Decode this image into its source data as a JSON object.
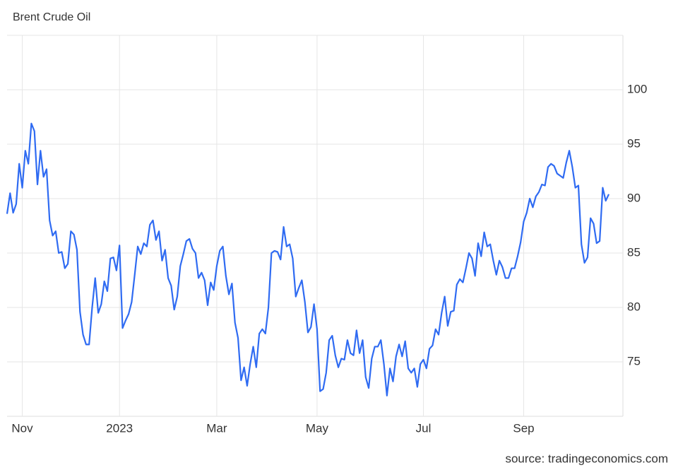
{
  "chart_data": {
    "type": "line",
    "title": "Brent Crude Oil",
    "source": "source: tradingeconomics.com",
    "color": "#2f6bf2",
    "grid": true,
    "ylim": [
      70,
      105
    ],
    "yticks": [
      75,
      80,
      85,
      90,
      95,
      100
    ],
    "categories": [
      null,
      null,
      null,
      null,
      null,
      "Nov",
      null,
      null,
      null,
      null,
      null,
      null,
      null,
      null,
      null,
      null,
      null,
      null,
      null,
      null,
      null,
      null,
      null,
      null,
      null,
      null,
      null,
      null,
      null,
      null,
      null,
      null,
      null,
      null,
      null,
      null,
      null,
      "2023",
      null,
      null,
      null,
      null,
      null,
      null,
      null,
      null,
      null,
      null,
      null,
      null,
      null,
      null,
      null,
      null,
      null,
      null,
      null,
      null,
      null,
      null,
      null,
      null,
      null,
      null,
      null,
      null,
      null,
      null,
      null,
      "Mar",
      null,
      null,
      null,
      null,
      null,
      null,
      null,
      null,
      null,
      null,
      null,
      null,
      null,
      null,
      null,
      null,
      null,
      null,
      null,
      null,
      null,
      null,
      null,
      null,
      null,
      null,
      null,
      null,
      null,
      null,
      null,
      null,
      "May",
      null,
      null,
      null,
      null,
      null,
      null,
      null,
      null,
      null,
      null,
      null,
      null,
      null,
      null,
      null,
      null,
      null,
      null,
      null,
      null,
      null,
      null,
      null,
      null,
      null,
      null,
      null,
      null,
      null,
      null,
      null,
      null,
      null,
      null,
      "Jul",
      null,
      null,
      null,
      null,
      null,
      null,
      null,
      null,
      null,
      null,
      null,
      null,
      null,
      null,
      null,
      null,
      null,
      null,
      null,
      null,
      null,
      null,
      null,
      null,
      null,
      null,
      null,
      null,
      null,
      null,
      null,
      null,
      "Sep",
      null,
      null,
      null,
      null,
      null,
      null,
      null,
      null,
      null,
      null,
      null,
      null,
      null,
      null,
      null,
      null,
      null,
      null,
      null,
      null,
      null,
      null,
      null,
      null,
      null,
      null,
      null,
      null
    ],
    "values": [
      88.6,
      90.5,
      88.7,
      89.5,
      93.2,
      91,
      94.4,
      93.2,
      96.9,
      96.2,
      91.3,
      94.4,
      92,
      92.7,
      88,
      86.6,
      87,
      85,
      85.1,
      83.6,
      84,
      87,
      86.7,
      85.3,
      79.6,
      77.5,
      76.6,
      76.6,
      80,
      82.7,
      79.5,
      80.3,
      82.4,
      81.5,
      84.5,
      84.6,
      83.4,
      85.7,
      78.1,
      78.8,
      79.4,
      80.5,
      83,
      85.6,
      84.9,
      85.9,
      85.6,
      87.6,
      88,
      86.2,
      87,
      84.3,
      85.3,
      82.7,
      82,
      79.8,
      81,
      83.8,
      84.9,
      86.1,
      86.3,
      85.4,
      85,
      82.7,
      83.2,
      82.5,
      80.2,
      82.3,
      81.6,
      83.8,
      85.2,
      85.6,
      82.9,
      81.2,
      82.2,
      78.6,
      77.2,
      73.3,
      74.5,
      72.8,
      74.8,
      76.4,
      74.5,
      77.6,
      78,
      77.6,
      80,
      85,
      85.2,
      85.1,
      84.4,
      87.4,
      85.6,
      85.8,
      84.5,
      81,
      81.8,
      82.5,
      80.5,
      77.7,
      78.2,
      80.3,
      78,
      72.3,
      72.5,
      74,
      77,
      77.4,
      75.6,
      74.5,
      75.3,
      75.2,
      77,
      75.8,
      75.6,
      77.9,
      75.8,
      77,
      73.6,
      72.6,
      75.3,
      76.4,
      76.4,
      77,
      74.8,
      71.9,
      74.4,
      73.2,
      75.5,
      76.6,
      75.5,
      76.9,
      74.4,
      74,
      74.4,
      72.7,
      74.8,
      75.2,
      74.4,
      76.2,
      76.5,
      78,
      77.5,
      79.5,
      81,
      78.3,
      79.6,
      79.7,
      82.1,
      82.6,
      82.3,
      83.6,
      85,
      84.5,
      82.9,
      85.9,
      84.7,
      86.9,
      85.6,
      85.8,
      84.3,
      83,
      84.3,
      83.7,
      82.7,
      82.7,
      83.6,
      83.6,
      84.7,
      86,
      87.9,
      88.7,
      90,
      89.2,
      90.2,
      90.6,
      91.3,
      91.2,
      92.9,
      93.2,
      93,
      92.3,
      92.1,
      91.9,
      93.3,
      94.4,
      92.9,
      91,
      91.2,
      85.8,
      84.1,
      84.6,
      88.2,
      87.7,
      85.9,
      86.1,
      91,
      89.8,
      90.4
    ]
  }
}
